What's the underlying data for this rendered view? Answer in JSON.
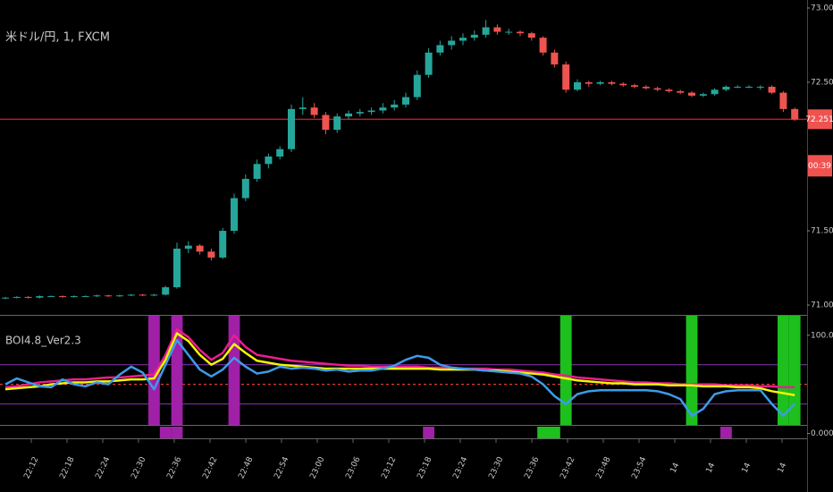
{
  "chart_data": {
    "type": "candlestick",
    "title": "米ドル/円, 1, FXCM",
    "up_color": "#26a69a",
    "down_color": "#ef5350",
    "ylim": [
      70.934,
      73.054
    ],
    "yticks": [
      {
        "value": 73,
        "label": "73.000"
      },
      {
        "value": 72.5,
        "label": "72.500"
      },
      {
        "value": 71.5,
        "label": "71.500"
      },
      {
        "value": 71,
        "label": "71.000"
      }
    ],
    "last_price": 72.251,
    "countdown": "00:39",
    "time_labels": [
      "22:12",
      "22:18",
      "22:24",
      "22:30",
      "22:36",
      "22:42",
      "22:48",
      "22:54",
      "23:00",
      "23:06",
      "23:12",
      "23:18",
      "23:24",
      "23:30",
      "23:36",
      "23:42",
      "23:48",
      "23:54",
      "14",
      "14",
      "14",
      "14"
    ],
    "candles": [
      [
        71.045,
        71.055,
        71.04,
        71.05
      ],
      [
        71.05,
        71.06,
        71.045,
        71.055
      ],
      [
        71.055,
        71.06,
        71.045,
        71.05
      ],
      [
        71.05,
        71.065,
        71.045,
        71.06
      ],
      [
        71.06,
        71.065,
        71.055,
        71.06
      ],
      [
        71.06,
        71.065,
        71.05,
        71.055
      ],
      [
        71.055,
        71.065,
        71.05,
        71.06
      ],
      [
        71.06,
        71.065,
        71.055,
        71.06
      ],
      [
        71.06,
        71.07,
        71.055,
        71.065
      ],
      [
        71.065,
        71.07,
        71.055,
        71.06
      ],
      [
        71.06,
        71.07,
        71.055,
        71.065
      ],
      [
        71.065,
        71.075,
        71.06,
        71.07
      ],
      [
        71.07,
        71.075,
        71.06,
        71.065
      ],
      [
        71.065,
        71.075,
        71.06,
        71.07
      ],
      [
        71.07,
        71.13,
        71.065,
        71.12
      ],
      [
        71.12,
        71.42,
        71.11,
        71.38
      ],
      [
        71.38,
        71.43,
        71.35,
        71.4
      ],
      [
        71.4,
        71.41,
        71.34,
        71.36
      ],
      [
        71.36,
        71.38,
        71.3,
        71.32
      ],
      [
        71.32,
        71.52,
        71.31,
        71.5
      ],
      [
        71.5,
        71.75,
        71.48,
        71.72
      ],
      [
        71.72,
        71.88,
        71.7,
        71.85
      ],
      [
        71.85,
        71.98,
        71.83,
        71.95
      ],
      [
        71.95,
        72.02,
        71.92,
        72.0
      ],
      [
        72.0,
        72.07,
        71.98,
        72.05
      ],
      [
        72.05,
        72.35,
        72.03,
        72.32
      ],
      [
        72.32,
        72.4,
        72.28,
        72.33
      ],
      [
        72.33,
        72.36,
        72.26,
        72.28
      ],
      [
        72.28,
        72.3,
        72.15,
        72.18
      ],
      [
        72.18,
        72.29,
        72.16,
        72.27
      ],
      [
        72.27,
        72.31,
        72.25,
        72.29
      ],
      [
        72.29,
        72.32,
        72.27,
        72.3
      ],
      [
        72.3,
        72.33,
        72.28,
        72.31
      ],
      [
        72.31,
        72.36,
        72.29,
        72.33
      ],
      [
        72.33,
        72.38,
        72.31,
        72.35
      ],
      [
        72.35,
        72.43,
        72.33,
        72.4
      ],
      [
        72.4,
        72.58,
        72.38,
        72.55
      ],
      [
        72.55,
        72.73,
        72.53,
        72.7
      ],
      [
        72.7,
        72.78,
        72.68,
        72.75
      ],
      [
        72.75,
        72.81,
        72.72,
        72.78
      ],
      [
        72.78,
        72.83,
        72.75,
        72.8
      ],
      [
        72.8,
        72.85,
        72.78,
        72.82
      ],
      [
        72.82,
        72.92,
        72.8,
        72.87
      ],
      [
        72.87,
        72.89,
        72.82,
        72.84
      ],
      [
        72.84,
        72.86,
        72.82,
        72.84
      ],
      [
        72.84,
        72.85,
        72.81,
        72.83
      ],
      [
        72.83,
        72.84,
        72.78,
        72.8
      ],
      [
        72.8,
        72.81,
        72.68,
        72.7
      ],
      [
        72.7,
        72.72,
        72.6,
        72.62
      ],
      [
        72.62,
        72.64,
        72.43,
        72.45
      ],
      [
        72.45,
        72.52,
        72.44,
        72.5
      ],
      [
        72.5,
        72.51,
        72.47,
        72.49
      ],
      [
        72.49,
        72.51,
        72.48,
        72.5
      ],
      [
        72.5,
        72.51,
        72.48,
        72.49
      ],
      [
        72.49,
        72.5,
        72.47,
        72.48
      ],
      [
        72.48,
        72.49,
        72.46,
        72.47
      ],
      [
        72.47,
        72.48,
        72.45,
        72.46
      ],
      [
        72.46,
        72.47,
        72.44,
        72.45
      ],
      [
        72.45,
        72.46,
        72.43,
        72.44
      ],
      [
        72.44,
        72.45,
        72.42,
        72.43
      ],
      [
        72.43,
        72.44,
        72.4,
        72.41
      ],
      [
        72.41,
        72.43,
        72.4,
        72.42
      ],
      [
        72.42,
        72.46,
        72.41,
        72.45
      ],
      [
        72.45,
        72.48,
        72.44,
        72.47
      ],
      [
        72.47,
        72.48,
        72.46,
        72.47
      ],
      [
        72.47,
        72.48,
        72.46,
        72.47
      ],
      [
        72.47,
        72.48,
        72.45,
        72.47
      ],
      [
        72.47,
        72.48,
        72.42,
        72.43
      ],
      [
        72.43,
        72.44,
        72.3,
        72.32
      ],
      [
        72.32,
        72.33,
        72.24,
        72.25
      ]
    ],
    "indicator": {
      "title": "BOI4.8_Ver2.3",
      "ylim": [
        -5,
        118
      ],
      "yticks": [
        {
          "value": 100,
          "label": "100.000"
        },
        {
          "value": 0,
          "label": "0.000"
        }
      ],
      "levels": [
        {
          "value": 70,
          "color": "#7b2f9e"
        },
        {
          "value": 50,
          "color": "#e53935"
        },
        {
          "value": 30,
          "color": "#7b2f9e"
        }
      ],
      "series": [
        {
          "color": "#e91e8c",
          "values": [
            47,
            48,
            50,
            52,
            53,
            54,
            55,
            55,
            56,
            57,
            57,
            58,
            59,
            60,
            80,
            106,
            98,
            85,
            75,
            82,
            100,
            88,
            80,
            78,
            76,
            74,
            73,
            72,
            71,
            70,
            69,
            69,
            68,
            68,
            68,
            68,
            68,
            67,
            67,
            67,
            66,
            66,
            66,
            65,
            65,
            64,
            63,
            62,
            60,
            59,
            57,
            56,
            55,
            54,
            53,
            52,
            52,
            51,
            51,
            50,
            50,
            50,
            50,
            49,
            49,
            49,
            48,
            48,
            47,
            47
          ]
        },
        {
          "color": "#f5f500",
          "values": [
            45,
            46,
            47,
            48,
            50,
            51,
            52,
            52,
            53,
            53,
            54,
            55,
            55,
            56,
            75,
            102,
            94,
            80,
            70,
            76,
            91,
            82,
            74,
            72,
            70,
            69,
            68,
            67,
            66,
            66,
            66,
            66,
            66,
            66,
            66,
            66,
            66,
            66,
            65,
            65,
            65,
            65,
            64,
            64,
            63,
            62,
            61,
            60,
            58,
            56,
            54,
            53,
            52,
            51,
            51,
            50,
            50,
            50,
            49,
            49,
            49,
            48,
            48,
            48,
            47,
            47,
            46,
            43,
            41,
            39
          ]
        },
        {
          "color": "#3d9be9",
          "values": [
            50,
            56,
            52,
            48,
            47,
            55,
            50,
            48,
            52,
            50,
            60,
            68,
            62,
            45,
            70,
            95,
            80,
            65,
            58,
            65,
            77,
            68,
            61,
            63,
            68,
            66,
            67,
            66,
            64,
            65,
            63,
            64,
            64,
            66,
            69,
            75,
            79,
            77,
            70,
            67,
            66,
            65,
            64,
            63,
            62,
            61,
            58,
            50,
            38,
            30,
            40,
            43,
            44,
            44,
            44,
            44,
            44,
            43,
            40,
            35,
            18,
            25,
            40,
            43,
            44,
            44,
            44,
            30,
            18,
            30
          ]
        }
      ],
      "upper_signals": {
        "purple": [
          13,
          15,
          20
        ],
        "green": [
          49,
          60,
          68,
          69
        ]
      },
      "lower_signals": {
        "purple": [
          14,
          15,
          37,
          63
        ],
        "green": [
          47,
          48
        ]
      },
      "signal_colors": {
        "purple": "#a020a8",
        "green": "#1ec01e"
      }
    }
  }
}
